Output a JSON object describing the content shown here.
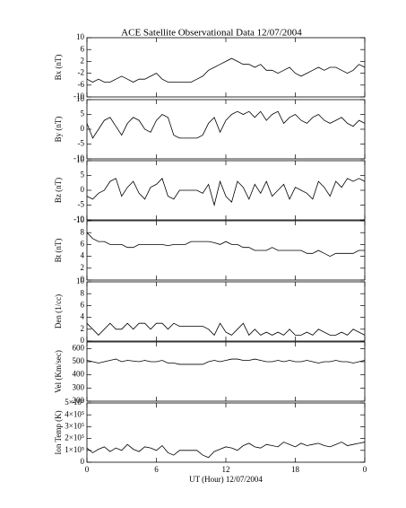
{
  "chart_data": [
    {
      "type": "line",
      "title": "ACE Satellite Observational Data   12/07/2004",
      "ylabel": "Bx (nT)",
      "color": "#000000",
      "x": [
        0,
        0.5,
        1,
        1.5,
        2,
        2.5,
        3,
        3.5,
        4,
        4.5,
        5,
        5.5,
        6,
        6.5,
        7,
        7.5,
        8,
        8.5,
        9,
        9.5,
        10,
        10.5,
        11,
        11.5,
        12,
        12.5,
        13,
        13.5,
        14,
        14.5,
        15,
        15.5,
        16,
        16.5,
        17,
        17.5,
        18,
        18.5,
        19,
        19.5,
        20,
        20.5,
        21,
        21.5,
        22,
        22.5,
        23,
        23.5,
        24
      ],
      "values": [
        -4,
        -5,
        -4,
        -5,
        -5,
        -4,
        -3,
        -4,
        -5,
        -4,
        -4,
        -3,
        -2,
        -4,
        -5,
        -5,
        -5,
        -5,
        -5,
        -4,
        -3,
        -1,
        0,
        1,
        2,
        3,
        2,
        1,
        1,
        0,
        1,
        -1,
        -1,
        -2,
        -1,
        0,
        -2,
        -3,
        -2,
        -1,
        0,
        -1,
        0,
        0,
        -1,
        -2,
        -1,
        1,
        0
      ],
      "xlim": [
        0,
        24
      ],
      "ylim": [
        -10,
        10
      ],
      "yticks": [
        -10,
        -6,
        -2,
        2,
        6,
        10
      ]
    },
    {
      "type": "line",
      "ylabel": "By (nT)",
      "color": "#000000",
      "x": [
        0,
        0.5,
        1,
        1.5,
        2,
        2.5,
        3,
        3.5,
        4,
        4.5,
        5,
        5.5,
        6,
        6.5,
        7,
        7.5,
        8,
        8.5,
        9,
        9.5,
        10,
        10.5,
        11,
        11.5,
        12,
        12.5,
        13,
        13.5,
        14,
        14.5,
        15,
        15.5,
        16,
        16.5,
        17,
        17.5,
        18,
        18.5,
        19,
        19.5,
        20,
        20.5,
        21,
        21.5,
        22,
        22.5,
        23,
        23.5,
        24
      ],
      "values": [
        2,
        -3,
        0,
        3,
        4,
        1,
        -2,
        2,
        4,
        3,
        0,
        -1,
        3,
        5,
        4,
        -2,
        -3,
        -3,
        -3,
        -3,
        -2,
        2,
        4,
        -1,
        3,
        5,
        6,
        5,
        6,
        4,
        6,
        3,
        5,
        6,
        2,
        4,
        5,
        3,
        2,
        4,
        5,
        3,
        2,
        3,
        4,
        2,
        1,
        3,
        2
      ],
      "xlim": [
        0,
        24
      ],
      "ylim": [
        -10,
        10
      ],
      "yticks": [
        -10,
        -5,
        0,
        5,
        10
      ]
    },
    {
      "type": "line",
      "ylabel": "Bz (nT)",
      "color": "#000000",
      "x": [
        0,
        0.5,
        1,
        1.5,
        2,
        2.5,
        3,
        3.5,
        4,
        4.5,
        5,
        5.5,
        6,
        6.5,
        7,
        7.5,
        8,
        8.5,
        9,
        9.5,
        10,
        10.5,
        11,
        11.5,
        12,
        12.5,
        13,
        13.5,
        14,
        14.5,
        15,
        15.5,
        16,
        16.5,
        17,
        17.5,
        18,
        18.5,
        19,
        19.5,
        20,
        20.5,
        21,
        21.5,
        22,
        22.5,
        23,
        23.5,
        24
      ],
      "values": [
        -2,
        -3,
        -1,
        0,
        3,
        4,
        -2,
        1,
        3,
        -1,
        -3,
        1,
        2,
        4,
        -2,
        -3,
        0,
        0,
        0,
        0,
        -1,
        2,
        -5,
        3,
        -2,
        -4,
        3,
        1,
        -3,
        2,
        -1,
        3,
        -2,
        0,
        2,
        -3,
        1,
        0,
        -1,
        -3,
        3,
        1,
        -2,
        3,
        1,
        4,
        3,
        4,
        3
      ],
      "xlim": [
        0,
        24
      ],
      "ylim": [
        -10,
        10
      ],
      "yticks": [
        -10,
        -5,
        0,
        5,
        10
      ]
    },
    {
      "type": "line",
      "ylabel": "Bt (nT)",
      "color": "#000000",
      "x": [
        0,
        0.5,
        1,
        1.5,
        2,
        2.5,
        3,
        3.5,
        4,
        4.5,
        5,
        5.5,
        6,
        6.5,
        7,
        7.5,
        8,
        8.5,
        9,
        9.5,
        10,
        10.5,
        11,
        11.5,
        12,
        12.5,
        13,
        13.5,
        14,
        14.5,
        15,
        15.5,
        16,
        16.5,
        17,
        17.5,
        18,
        18.5,
        19,
        19.5,
        20,
        20.5,
        21,
        21.5,
        22,
        22.5,
        23,
        23.5,
        24
      ],
      "values": [
        8,
        7,
        6.5,
        6.5,
        6,
        6,
        6,
        5.5,
        5.5,
        6,
        6,
        6,
        6,
        6,
        5.8,
        6,
        6,
        6,
        6.5,
        6.5,
        6.5,
        6.5,
        6.3,
        6,
        6.5,
        6,
        6,
        5.5,
        5.5,
        5,
        5,
        5,
        5.5,
        5,
        5,
        5,
        5,
        5,
        4.5,
        4.5,
        5,
        4.5,
        4,
        4.5,
        4.5,
        4.5,
        4.5,
        5,
        5
      ],
      "xlim": [
        0,
        24
      ],
      "ylim": [
        0,
        10
      ],
      "yticks": [
        0,
        2,
        4,
        6,
        8,
        10
      ]
    },
    {
      "type": "line",
      "ylabel": "Den (1/cc)",
      "color": "#000000",
      "x": [
        0,
        0.5,
        1,
        1.5,
        2,
        2.5,
        3,
        3.5,
        4,
        4.5,
        5,
        5.5,
        6,
        6.5,
        7,
        7.5,
        8,
        8.5,
        9,
        9.5,
        10,
        10.5,
        11,
        11.5,
        12,
        12.5,
        13,
        13.5,
        14,
        14.5,
        15,
        15.5,
        16,
        16.5,
        17,
        17.5,
        18,
        18.5,
        19,
        19.5,
        20,
        20.5,
        21,
        21.5,
        22,
        22.5,
        23,
        23.5,
        24
      ],
      "values": [
        3,
        2,
        1,
        2,
        3,
        2,
        2,
        3,
        2,
        3,
        3,
        2,
        3,
        3,
        2,
        3,
        2.5,
        2.5,
        2.5,
        2.5,
        2.5,
        2,
        1,
        3,
        1.5,
        1,
        2,
        3,
        1,
        2,
        1,
        1.5,
        1,
        1.5,
        1,
        2,
        1,
        1,
        1.5,
        1,
        2,
        1.5,
        1,
        1,
        1.5,
        1,
        2,
        1.5,
        1
      ],
      "xlim": [
        0,
        24
      ],
      "ylim": [
        0,
        10
      ],
      "yticks": [
        0,
        2,
        4,
        6,
        8,
        10
      ]
    },
    {
      "type": "line",
      "ylabel": "Vel (Km/sec)",
      "color": "#000000",
      "x": [
        0,
        0.5,
        1,
        1.5,
        2,
        2.5,
        3,
        3.5,
        4,
        4.5,
        5,
        5.5,
        6,
        6.5,
        7,
        7.5,
        8,
        8.5,
        9,
        9.5,
        10,
        10.5,
        11,
        11.5,
        12,
        12.5,
        13,
        13.5,
        14,
        14.5,
        15,
        15.5,
        16,
        16.5,
        17,
        17.5,
        18,
        18.5,
        19,
        19.5,
        20,
        20.5,
        21,
        21.5,
        22,
        22.5,
        23,
        23.5,
        24
      ],
      "values": [
        510,
        500,
        490,
        500,
        510,
        520,
        500,
        510,
        505,
        500,
        510,
        500,
        500,
        510,
        490,
        490,
        480,
        480,
        480,
        480,
        480,
        500,
        510,
        500,
        510,
        520,
        520,
        510,
        510,
        520,
        510,
        500,
        500,
        510,
        500,
        510,
        500,
        500,
        510,
        500,
        490,
        500,
        500,
        510,
        500,
        500,
        490,
        500,
        510
      ],
      "xlim": [
        0,
        24
      ],
      "ylim": [
        200,
        650
      ],
      "yticks": [
        200,
        300,
        400,
        500,
        600
      ]
    },
    {
      "type": "line",
      "ylabel": "Ion Temp (K)",
      "xlabel": "UT (Hour)  12/07/2004",
      "color": "#000000",
      "x": [
        0,
        0.5,
        1,
        1.5,
        2,
        2.5,
        3,
        3.5,
        4,
        4.5,
        5,
        5.5,
        6,
        6.5,
        7,
        7.5,
        8,
        8.5,
        9,
        9.5,
        10,
        10.5,
        11,
        11.5,
        12,
        12.5,
        13,
        13.5,
        14,
        14.5,
        15,
        15.5,
        16,
        16.5,
        17,
        17.5,
        18,
        18.5,
        19,
        19.5,
        20,
        20.5,
        21,
        21.5,
        22,
        22.5,
        23,
        23.5,
        24
      ],
      "values": [
        120000,
        80000,
        110000,
        130000,
        90000,
        120000,
        100000,
        150000,
        110000,
        90000,
        130000,
        120000,
        100000,
        140000,
        80000,
        60000,
        100000,
        100000,
        100000,
        100000,
        60000,
        40000,
        90000,
        110000,
        130000,
        120000,
        100000,
        140000,
        160000,
        130000,
        120000,
        150000,
        140000,
        130000,
        170000,
        150000,
        130000,
        160000,
        140000,
        150000,
        160000,
        140000,
        130000,
        150000,
        170000,
        140000,
        150000,
        160000,
        170000
      ],
      "xlim": [
        0,
        24
      ],
      "ylim": [
        0,
        500000
      ],
      "yticks": [
        0,
        {
          "value": 100000,
          "label": "1×10⁵"
        },
        {
          "value": 200000,
          "label": "2×10⁵"
        },
        {
          "value": 300000,
          "label": "3×10⁵"
        },
        {
          "value": 400000,
          "label": "4×10⁵"
        },
        {
          "value": 500000,
          "label": "5×10⁵"
        }
      ],
      "xticks": [
        0,
        6,
        12,
        18,
        {
          "value": 24,
          "label": "0"
        }
      ]
    }
  ]
}
